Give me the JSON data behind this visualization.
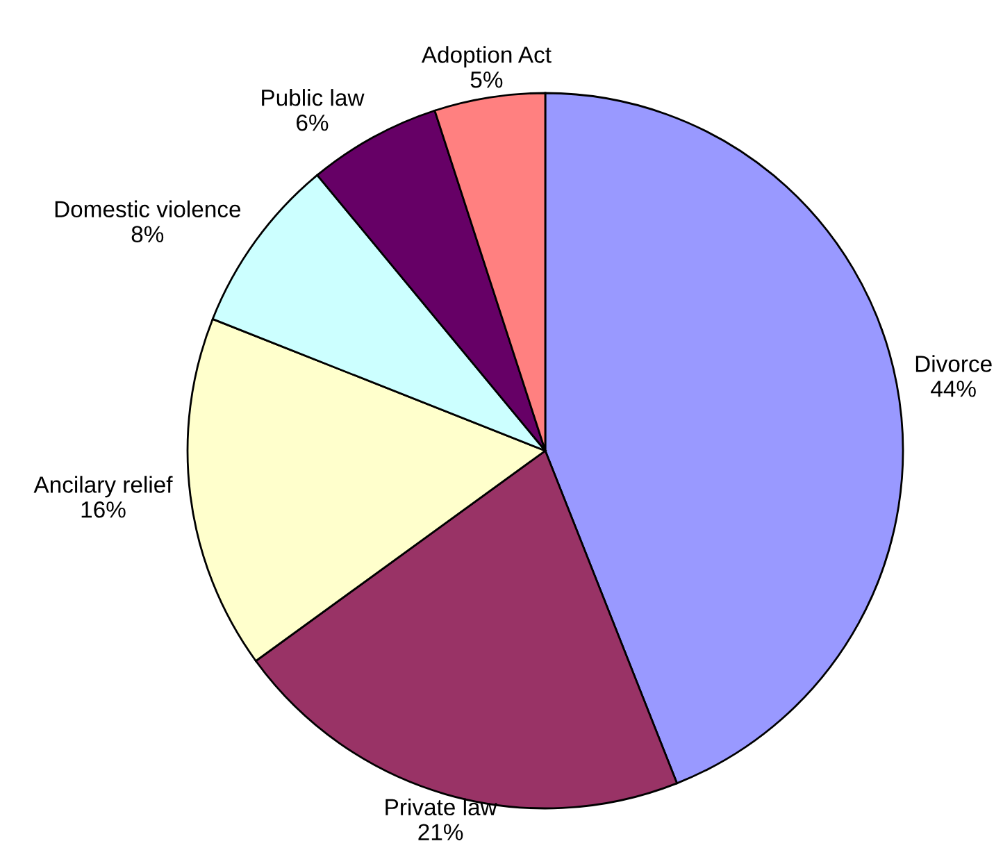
{
  "chart_data": {
    "type": "pie",
    "categories": [
      "Divorce",
      "Private law",
      "Ancilary relief",
      "Domestic violence",
      "Public law",
      "Adoption Act"
    ],
    "values": [
      44,
      21,
      16,
      8,
      6,
      5
    ],
    "value_labels": [
      "44%",
      "21%",
      "16%",
      "8%",
      "6%",
      "5%"
    ],
    "colors": [
      "#9999ff",
      "#993366",
      "#ffffcc",
      "#ccffff",
      "#660066",
      "#ff8080"
    ],
    "legend": false
  }
}
